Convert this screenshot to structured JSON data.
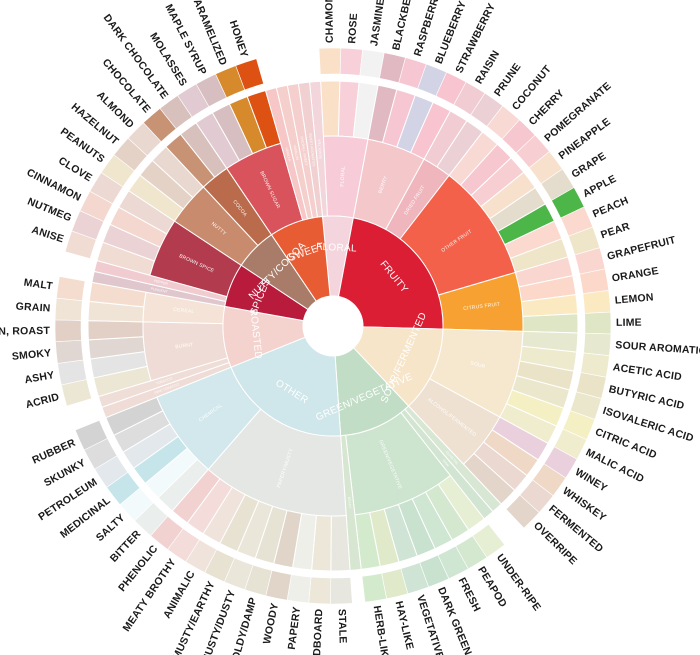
{
  "wheel": {
    "categories": [
      {
        "name": "FLORAL",
        "color": "#f5d5dd",
        "children": [
          {
            "name": "BLACK TEA",
            "color": "#f3d6dc",
            "flavors": []
          },
          {
            "name": "FLORAL",
            "color": "#f7ccd8",
            "flavors": [
              {
                "name": "CHAMOMILE",
                "color": "#fbe0c8"
              },
              {
                "name": "ROSE",
                "color": "#f8d0da"
              },
              {
                "name": "JASMINE",
                "color": "#f2f2f2"
              }
            ]
          }
        ]
      },
      {
        "name": "FRUITY",
        "color": "#dc1e35",
        "children": [
          {
            "name": "BERRY",
            "color": "#f4c7cb",
            "flavors": [
              {
                "name": "BLACKBERRY",
                "color": "#e1b9c3"
              },
              {
                "name": "RASPBERRY",
                "color": "#f6c6d3"
              },
              {
                "name": "BLUEBERRY",
                "color": "#d3d3e6"
              },
              {
                "name": "STRAWBERRY",
                "color": "#f7c4cf"
              }
            ]
          },
          {
            "name": "DRIED FRUIT",
            "color": "#efb6bd",
            "flavors": [
              {
                "name": "RAISIN",
                "color": "#f2ccd3"
              },
              {
                "name": "PRUNE",
                "color": "#ebd0d6"
              }
            ]
          },
          {
            "name": "OTHER FRUIT",
            "color": "#f3614b",
            "flavors": [
              {
                "name": "COCONUT",
                "color": "#f9d9d4"
              },
              {
                "name": "CHERRY",
                "color": "#f6c7cf"
              },
              {
                "name": "POMEGRANATE",
                "color": "#f7cfd3"
              },
              {
                "name": "PINEAPPLE",
                "color": "#f8e1cc"
              },
              {
                "name": "GRAPE",
                "color": "#e4dccc"
              },
              {
                "name": "APPLE",
                "color": "#4cb649"
              },
              {
                "name": "PEACH",
                "color": "#fbd9cf"
              },
              {
                "name": "PEAR",
                "color": "#efe5c8"
              }
            ]
          },
          {
            "name": "CITRUS FRUIT",
            "color": "#f6a131",
            "flavors": [
              {
                "name": "GRAPEFRUIT",
                "color": "#f9d6cf"
              },
              {
                "name": "ORANGE",
                "color": "#fbd8c9"
              },
              {
                "name": "LEMON",
                "color": "#fbe9c1"
              },
              {
                "name": "LIME",
                "color": "#dfe6c5"
              }
            ]
          }
        ]
      },
      {
        "name": "SOUR/FERMENTED",
        "color": "#f7e5c9",
        "children": [
          {
            "name": "SOUR",
            "color": "#f6e8cf",
            "flavors": [
              {
                "name": "SOUR AROMATICS",
                "color": "#e6e9cf"
              },
              {
                "name": "ACETIC ACID",
                "color": "#eeeacd"
              },
              {
                "name": "BUTYRIC ACID",
                "color": "#eae3c8"
              },
              {
                "name": "ISOVALERIC ACID",
                "color": "#eae7cc"
              },
              {
                "name": "CITRIC ACID",
                "color": "#f4f0c4"
              },
              {
                "name": "MALIC ACID",
                "color": "#f0ecce"
              }
            ]
          },
          {
            "name": "ALCOHOL/FERMENTED",
            "color": "#efe1d1",
            "flavors": [
              {
                "name": "WINEY",
                "color": "#ead0dd"
              },
              {
                "name": "WHISKEY",
                "color": "#efd9c6"
              },
              {
                "name": "FERMENTED",
                "color": "#ead8d1"
              },
              {
                "name": "OVERRIPE",
                "color": "#e3d5ca"
              }
            ]
          }
        ]
      },
      {
        "name": "GREEN/VEGETATIVE",
        "color": "#c1ddc6",
        "children": [
          {
            "name": "OLIVE OIL",
            "color": "#d8e7d3",
            "flavors": []
          },
          {
            "name": "RAW",
            "color": "#d2e5d2",
            "flavors": []
          },
          {
            "name": "GREEN/VEGETATIVE",
            "color": "#cde4cf",
            "flavors": [
              {
                "name": "UNDER-RIPE",
                "color": "#e6eed3"
              },
              {
                "name": "PEAPOD",
                "color": "#d4e8d0"
              },
              {
                "name": "FRESH",
                "color": "#cfe6d3"
              },
              {
                "name": "DARK GREEN",
                "color": "#c8e2cf"
              },
              {
                "name": "VEGETATIVE",
                "color": "#cfe4d4"
              },
              {
                "name": "HAY-LIKE",
                "color": "#e0eaca"
              },
              {
                "name": "HERB-LIKE",
                "color": "#d3ebcc"
              }
            ]
          },
          {
            "name": "BEANY",
            "color": "#d6e6d0",
            "flavors": []
          }
        ]
      },
      {
        "name": "OTHER",
        "color": "#cfe6ea",
        "children": [
          {
            "name": "PAPERY/MUSTY",
            "color": "#e5e7e5",
            "flavors": [
              {
                "name": "STALE",
                "color": "#e7e7df"
              },
              {
                "name": "CARDBOARD",
                "color": "#ece7d8"
              },
              {
                "name": "PAPERY",
                "color": "#efefea"
              },
              {
                "name": "WOODY",
                "color": "#e0d5c8"
              },
              {
                "name": "MOLDY/DAMP",
                "color": "#e6e3d5"
              },
              {
                "name": "MUSTY/DUSTY",
                "color": "#ebe6da"
              },
              {
                "name": "MUSTY/EARTHY",
                "color": "#e8e2d3"
              },
              {
                "name": "ANIMALIC",
                "color": "#f0e3dc"
              },
              {
                "name": "MEATY BROTHY",
                "color": "#f3dcd9"
              },
              {
                "name": "PHENOLIC",
                "color": "#f2d1d1"
              }
            ]
          },
          {
            "name": "CHEMICAL",
            "color": "#d3e8ec",
            "flavors": [
              {
                "name": "BITTER",
                "color": "#eaeeec"
              },
              {
                "name": "SALTY",
                "color": "#f3fafb"
              },
              {
                "name": "MEDICINAL",
                "color": "#c5e5ea"
              },
              {
                "name": "PETROLEUM",
                "color": "#e3e8ec"
              },
              {
                "name": "SKUNKY",
                "color": "#dddddd"
              },
              {
                "name": "RUBBER",
                "color": "#d3d3d3"
              }
            ]
          }
        ]
      },
      {
        "name": "ROASTED",
        "color": "#f4d3ce",
        "children": [
          {
            "name": "PIPE TOBACCO",
            "color": "#f0dcd6",
            "flavors": []
          },
          {
            "name": "TOBACCO",
            "color": "#efddd8",
            "flavors": []
          },
          {
            "name": "BURNT",
            "color": "#efdcd6",
            "flavors": [
              {
                "name": "ACRID",
                "color": "#ece7d4"
              },
              {
                "name": "ASHY",
                "color": "#e3e4e3"
              },
              {
                "name": "SMOKY",
                "color": "#e0d7d2"
              },
              {
                "name": "BROWN, ROAST",
                "color": "#e2d0c6"
              }
            ]
          },
          {
            "name": "CEREAL",
            "color": "#f4e3d6",
            "flavors": [
              {
                "name": "GRAIN",
                "color": "#f0e4d6"
              },
              {
                "name": "MALT",
                "color": "#f4ddcf"
              }
            ]
          }
        ]
      },
      {
        "name": "SPICES",
        "color": "#b81b3c",
        "children": [
          {
            "name": "PUNGENT",
            "color": "#e0c6cd",
            "flavors": []
          },
          {
            "name": "PEPPER",
            "color": "#f0cbd0",
            "flavors": []
          },
          {
            "name": "BROWN SPICE",
            "color": "#b23b4e",
            "flavors": [
              {
                "name": "ANISE",
                "color": "#f0dcd3"
              },
              {
                "name": "NUTMEG",
                "color": "#ebd2d4"
              },
              {
                "name": "CINNAMON",
                "color": "#f4d7cf"
              },
              {
                "name": "CLOVE",
                "color": "#ecd9d3"
              }
            ]
          }
        ]
      },
      {
        "name": "NUTTY/COCOA",
        "color": "#a87c68",
        "children": [
          {
            "name": "NUTTY",
            "color": "#c88b6d",
            "flavors": [
              {
                "name": "PEANUTS",
                "color": "#f0e6cd"
              },
              {
                "name": "HAZELNUT",
                "color": "#e5d2c6"
              },
              {
                "name": "ALMOND",
                "color": "#e9d8cf"
              }
            ]
          },
          {
            "name": "COCOA",
            "color": "#b96b4b",
            "flavors": [
              {
                "name": "CHOCOLATE",
                "color": "#c89275"
              },
              {
                "name": "DARK CHOCOLATE",
                "color": "#d8c1bd"
              }
            ]
          }
        ]
      },
      {
        "name": "SWEET",
        "color": "#e85c34",
        "children": [
          {
            "name": "BROWN SUGAR",
            "color": "#d8535b",
            "flavors": [
              {
                "name": "MOLASSES",
                "color": "#e1cad1"
              },
              {
                "name": "MAPLE SYRUP",
                "color": "#d7bfc1"
              },
              {
                "name": "CARAMELIZED",
                "color": "#d78a2c"
              },
              {
                "name": "HONEY",
                "color": "#dd5113"
              }
            ]
          },
          {
            "name": "VANILLA",
            "color": "#f6c7c6",
            "flavors": []
          },
          {
            "name": "VANILLIN",
            "color": "#f4cfcb",
            "flavors": []
          },
          {
            "name": "OVERALL SWEET",
            "color": "#f5cfcd",
            "flavors": []
          },
          {
            "name": "SWEET AROMATICS",
            "color": "#f0d0d0",
            "flavors": []
          }
        ]
      }
    ]
  }
}
